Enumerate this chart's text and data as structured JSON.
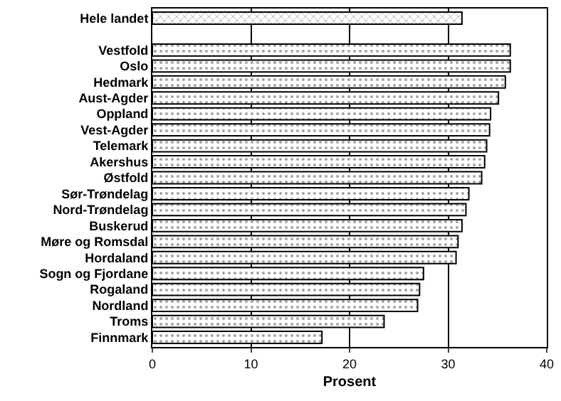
{
  "chart_data": {
    "type": "bar",
    "orientation": "horizontal",
    "xlabel": "Prosent",
    "categories": [
      "Hele landet",
      null,
      "Vestfold",
      "Oslo",
      "Hedmark",
      "Aust-Agder",
      "Oppland",
      "Vest-Agder",
      "Telemark",
      "Akershus",
      "Østfold",
      "Sør-Trøndelag",
      "Nord-Trøndelag",
      "Buskerud",
      "Møre og Romsdal",
      "Hordaland",
      "Sogn og Fjordane",
      "Rogaland",
      "Nordland",
      "Troms",
      "Finnmark"
    ],
    "values": [
      31.4,
      null,
      36.3,
      36.3,
      35.8,
      35.1,
      34.3,
      34.2,
      33.9,
      33.7,
      33.4,
      32.1,
      31.8,
      31.4,
      31.0,
      30.8,
      27.5,
      27.1,
      26.9,
      23.5,
      17.2
    ],
    "xlim": [
      0,
      40
    ],
    "xticks": [
      0,
      10,
      20,
      30,
      40
    ],
    "grid": "x",
    "legend": false
  }
}
